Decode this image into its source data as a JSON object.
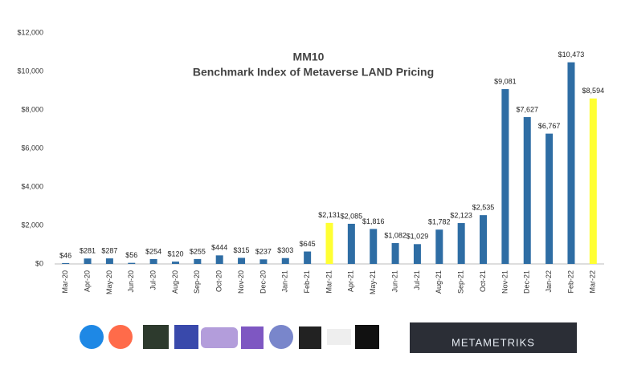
{
  "chart_data": {
    "type": "bar",
    "title": "MM10",
    "subtitle": "Benchmark Index of Metaverse LAND Pricing",
    "categories": [
      "Mar-20",
      "Apr-20",
      "May-20",
      "Jun-20",
      "Jul-20",
      "Aug-20",
      "Sep-20",
      "Oct-20",
      "Nov-20",
      "Dec-20",
      "Jan-21",
      "Feb-21",
      "Mar-21",
      "Apr-21",
      "May-21",
      "Jun-21",
      "Jul-21",
      "Aug-21",
      "Sep-21",
      "Oct-21",
      "Nov-21",
      "Dec-21",
      "Jan-22",
      "Feb-22",
      "Mar-22"
    ],
    "values": [
      46,
      281,
      287,
      56,
      254,
      120,
      255,
      444,
      315,
      237,
      303,
      645,
      2131,
      2085,
      1816,
      1082,
      1029,
      1782,
      2123,
      2535,
      9081,
      7627,
      6767,
      10473,
      8594
    ],
    "value_labels": [
      "$46",
      "$281",
      "$287",
      "$56",
      "$254",
      "$120",
      "$255",
      "$444",
      "$315",
      "$237",
      "$303",
      "$645",
      "$2,131",
      "$2,085",
      "$1,816",
      "$1,082",
      "$1,029",
      "$1,782",
      "$2,123",
      "$2,535",
      "$9,081",
      "$7,627",
      "$6,767",
      "$10,473",
      "$8,594"
    ],
    "colors": [
      "#2e6da4",
      "#2e6da4",
      "#2e6da4",
      "#2e6da4",
      "#2e6da4",
      "#2e6da4",
      "#2e6da4",
      "#2e6da4",
      "#2e6da4",
      "#2e6da4",
      "#2e6da4",
      "#2e6da4",
      "#ffff33",
      "#2e6da4",
      "#2e6da4",
      "#2e6da4",
      "#2e6da4",
      "#2e6da4",
      "#2e6da4",
      "#2e6da4",
      "#2e6da4",
      "#2e6da4",
      "#2e6da4",
      "#2e6da4",
      "#ffff33"
    ],
    "ylim": [
      0,
      12000
    ],
    "yticks": [
      {
        "value": 0,
        "label": "$0"
      },
      {
        "value": 2000,
        "label": "$2,000"
      },
      {
        "value": 4000,
        "label": "$4,000"
      },
      {
        "value": 6000,
        "label": "$6,000"
      },
      {
        "value": 8000,
        "label": "$8,000"
      },
      {
        "value": 10000,
        "label": "$10,000"
      },
      {
        "value": 12000,
        "label": "$12,000"
      }
    ],
    "grid": false
  },
  "footer": {
    "brand": "METAMETRIKS"
  }
}
